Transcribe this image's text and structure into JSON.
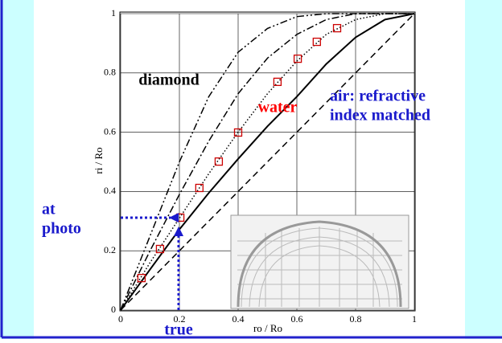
{
  "chart_data": {
    "type": "line",
    "xlabel": "ro / Ro",
    "ylabel": "ri / Ro",
    "xlim": [
      0,
      1
    ],
    "ylim": [
      0,
      1
    ],
    "xticks": [
      0,
      0.2,
      0.4,
      0.6,
      0.8,
      1
    ],
    "yticks": [
      0,
      0.2,
      0.4,
      0.6,
      0.8,
      1
    ],
    "grid": true,
    "series": [
      {
        "style": "dashed",
        "color": "#000000",
        "x": [
          0,
          1
        ],
        "values": [
          0,
          1
        ]
      },
      {
        "style": "solid",
        "color": "#000000",
        "x": [
          0,
          0.1,
          0.2,
          0.3,
          0.4,
          0.5,
          0.6,
          0.7,
          0.8,
          0.9,
          1
        ],
        "values": [
          0,
          0.137,
          0.272,
          0.395,
          0.51,
          0.62,
          0.72,
          0.83,
          0.92,
          0.98,
          1
        ]
      },
      {
        "style": "dotted",
        "color": "#000000",
        "x": [
          0,
          0.1,
          0.2,
          0.3,
          0.4,
          0.5,
          0.6,
          0.7,
          0.8,
          0.9,
          1
        ],
        "values": [
          0,
          0.16,
          0.31,
          0.46,
          0.6,
          0.73,
          0.84,
          0.93,
          0.98,
          1,
          1
        ]
      },
      {
        "style": "dashdot",
        "color": "#000000",
        "x": [
          0,
          0.1,
          0.2,
          0.3,
          0.4,
          0.5,
          0.6,
          0.7,
          0.8,
          0.9,
          1
        ],
        "values": [
          0,
          0.2,
          0.39,
          0.57,
          0.73,
          0.85,
          0.93,
          0.98,
          1,
          1,
          1
        ]
      },
      {
        "style": "dashdotdot",
        "color": "#000000",
        "x": [
          0,
          0.1,
          0.2,
          0.3,
          0.4,
          0.5,
          0.6,
          0.7,
          0.8,
          0.9,
          1
        ],
        "values": [
          0,
          0.25,
          0.5,
          0.72,
          0.87,
          0.95,
          0.99,
          1,
          1,
          1,
          1
        ]
      },
      {
        "style": "markers",
        "color": "#cc0000",
        "x": [
          0.071,
          0.134,
          0.203,
          0.268,
          0.334,
          0.4,
          0.534,
          0.603,
          0.668,
          0.737
        ],
        "values": [
          0.108,
          0.206,
          0.312,
          0.412,
          0.501,
          0.599,
          0.77,
          0.848,
          0.905,
          0.951
        ]
      }
    ],
    "annotations": [
      {
        "text": "diamond",
        "color": "#000000"
      },
      {
        "text": "water",
        "color": "#ff0000"
      },
      {
        "text": "air: refractive",
        "color": "#1a1acc"
      },
      {
        "text": "index matched",
        "color": "#1a1acc"
      },
      {
        "text": "at",
        "color": "#1a1acc"
      },
      {
        "text": "photo",
        "color": "#1a1acc"
      },
      {
        "text": "true",
        "color": "#1a1acc"
      }
    ]
  }
}
